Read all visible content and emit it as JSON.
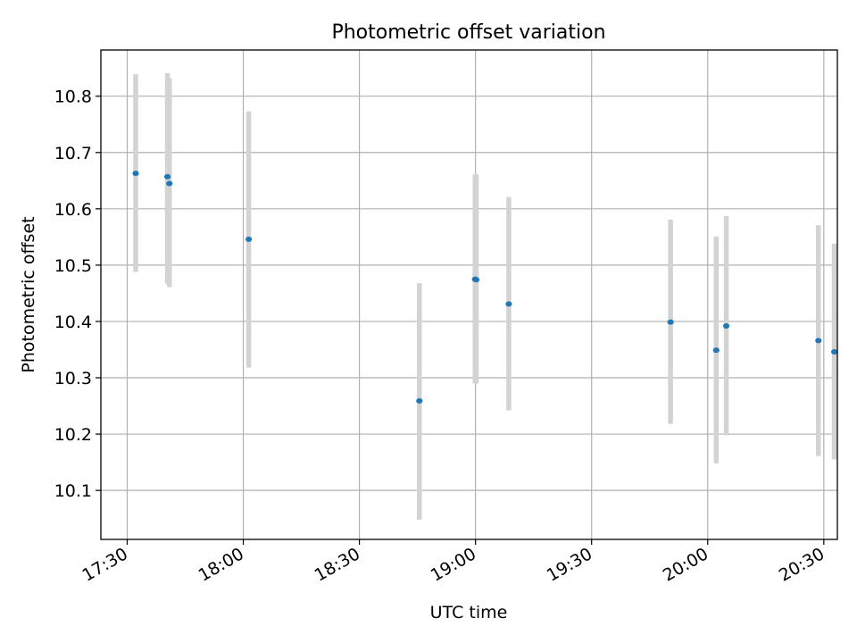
{
  "chart_data": {
    "type": "scatter",
    "title": "Photometric offset variation",
    "xlabel": "UTC time",
    "ylabel": "Photometric offset",
    "grid": true,
    "x_ticks": [
      "17:30",
      "18:00",
      "18:30",
      "19:00",
      "19:30",
      "20:00",
      "20:30"
    ],
    "x_tick_minutes": [
      1050,
      1080,
      1110,
      1140,
      1170,
      1200,
      1230
    ],
    "y_ticks": [
      "10.1",
      "10.2",
      "10.3",
      "10.4",
      "10.5",
      "10.6",
      "10.7",
      "10.8"
    ],
    "xlim_minutes": [
      1043.2,
      1233.5
    ],
    "ylim": [
      10.013,
      10.882
    ],
    "point_color": "#1f77b4",
    "errorbar_color": "#d3d3d3",
    "series": [
      {
        "name": "offset",
        "points": [
          {
            "t": 1052.2,
            "y": 10.663,
            "lo": 10.488,
            "hi": 10.839
          },
          {
            "t": 1060.4,
            "y": 10.657,
            "lo": 10.467,
            "hi": 10.841
          },
          {
            "t": 1060.9,
            "y": 10.645,
            "lo": 10.461,
            "hi": 10.832
          },
          {
            "t": 1081.4,
            "y": 10.546,
            "lo": 10.318,
            "hi": 10.773
          },
          {
            "t": 1125.5,
            "y": 10.259,
            "lo": 10.048,
            "hi": 10.468
          },
          {
            "t": 1139.9,
            "y": 10.475,
            "lo": 10.29,
            "hi": 10.661
          },
          {
            "t": 1140.2,
            "y": 10.474,
            "lo": 10.29,
            "hi": 10.661
          },
          {
            "t": 1148.6,
            "y": 10.431,
            "lo": 10.242,
            "hi": 10.621
          },
          {
            "t": 1190.4,
            "y": 10.399,
            "lo": 10.218,
            "hi": 10.581
          },
          {
            "t": 1202.2,
            "y": 10.349,
            "lo": 10.148,
            "hi": 10.551
          },
          {
            "t": 1204.8,
            "y": 10.392,
            "lo": 10.198,
            "hi": 10.587
          },
          {
            "t": 1228.6,
            "y": 10.366,
            "lo": 10.161,
            "hi": 10.571
          },
          {
            "t": 1232.7,
            "y": 10.346,
            "lo": 10.155,
            "hi": 10.538
          }
        ]
      }
    ]
  }
}
